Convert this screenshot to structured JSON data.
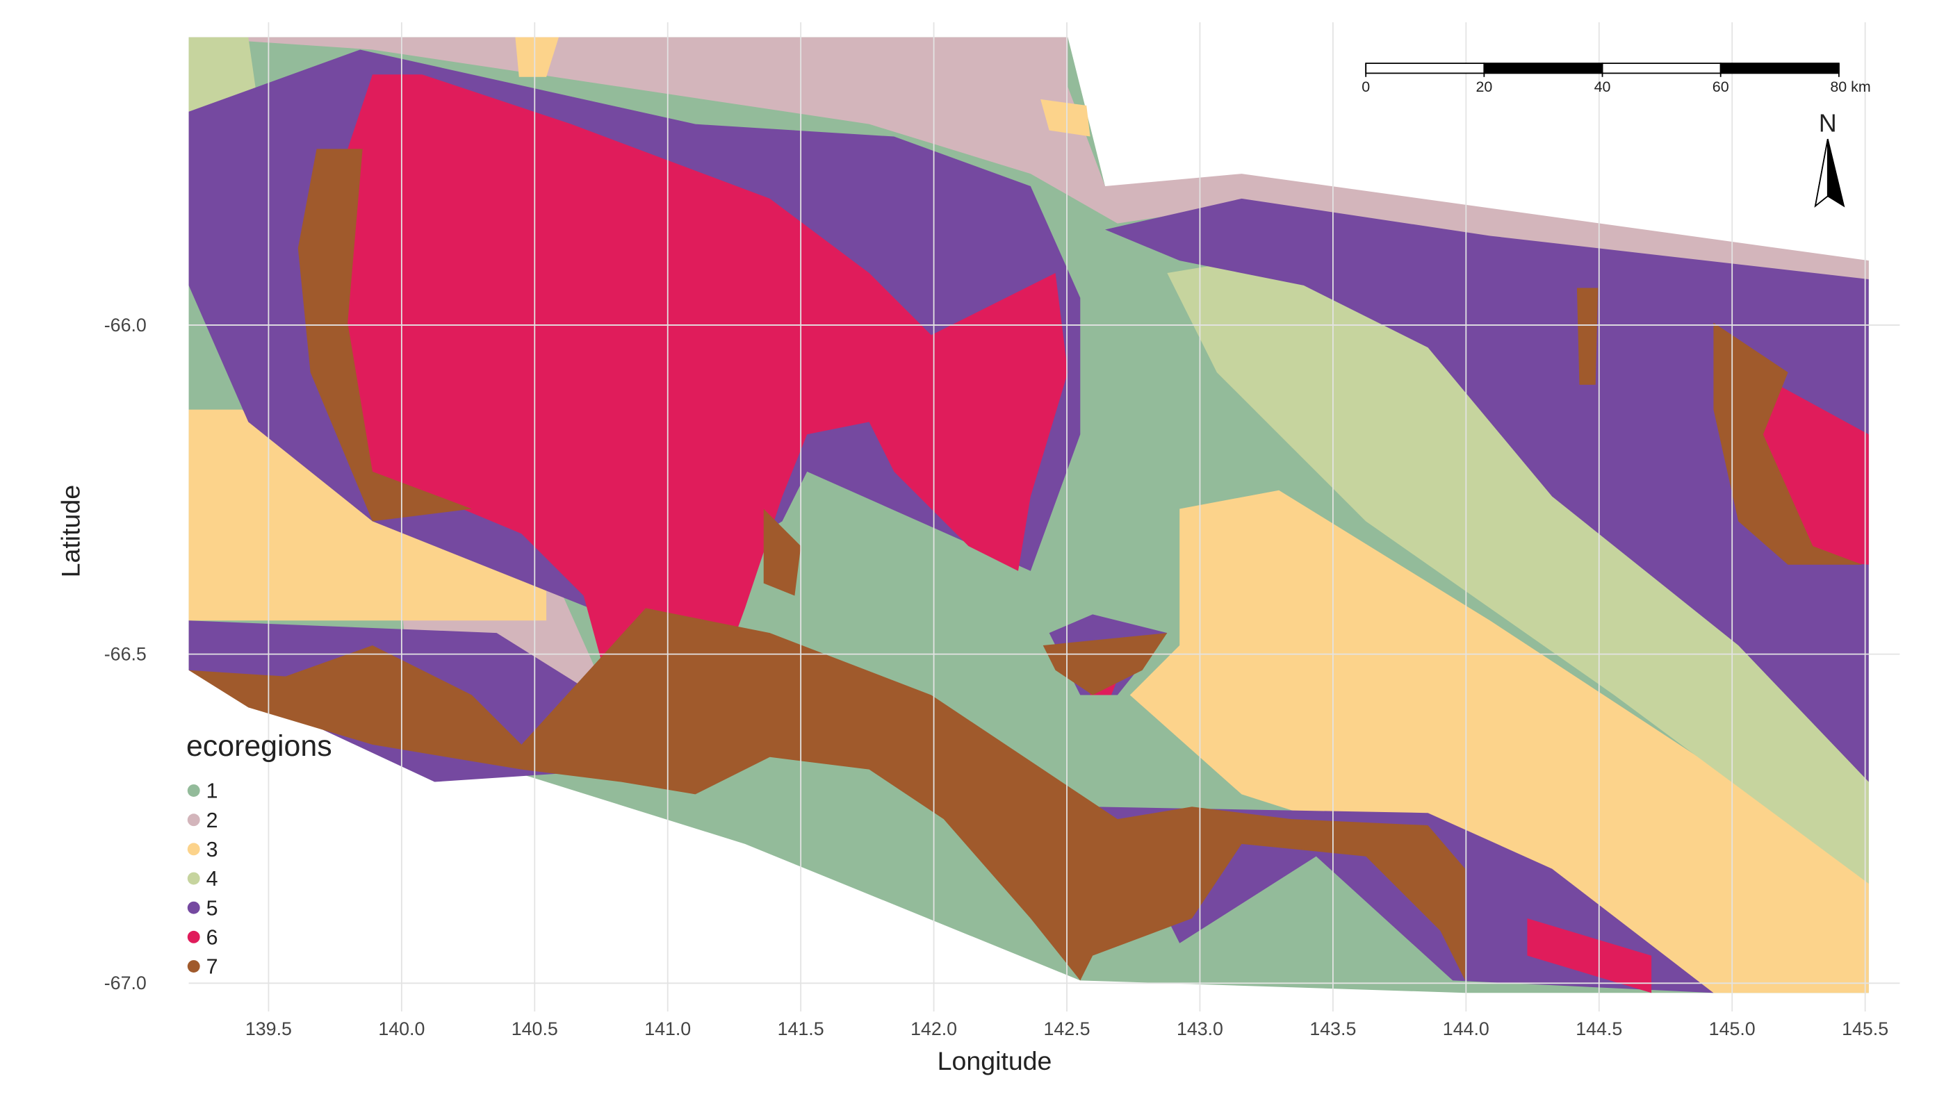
{
  "chart_data": {
    "type": "map",
    "x_label": "Longitude",
    "y_label": "Latitude",
    "xlim": [
      139.2,
      145.63
    ],
    "ylim": [
      -67.043,
      -65.54
    ],
    "xticks": [
      139.5,
      {
        "value": 140,
        "label": "140.0"
      },
      140.5,
      {
        "value": 141,
        "label": "141.0"
      },
      141.5,
      {
        "value": 142,
        "label": "142.0"
      },
      142.5,
      {
        "value": 143,
        "label": "143.0"
      },
      143.5,
      {
        "value": 144,
        "label": "144.0"
      },
      144.5,
      {
        "value": 145,
        "label": "145.0"
      },
      145.5
    ],
    "yticks": [
      {
        "value": -66,
        "label": "-66.0"
      },
      -66.5,
      {
        "value": -67,
        "label": "-67.0"
      }
    ],
    "grid": true,
    "legend": {
      "title": "ecoregions",
      "position": "left",
      "entries": [
        {
          "name": "1",
          "color": "#93bb9a"
        },
        {
          "name": "2",
          "color": "#d3b5bb"
        },
        {
          "name": "3",
          "color": "#fcd38b"
        },
        {
          "name": "4",
          "color": "#c6d49e"
        },
        {
          "name": "5",
          "color": "#7549a0"
        },
        {
          "name": "6",
          "color": "#e01c5b"
        },
        {
          "name": "7",
          "color": "#a05a2c"
        }
      ]
    },
    "scale_bar": {
      "ticks": [
        0,
        20,
        40,
        60,
        {
          "value": 80,
          "label": "80 km"
        }
      ]
    },
    "north_arrow": "N"
  }
}
